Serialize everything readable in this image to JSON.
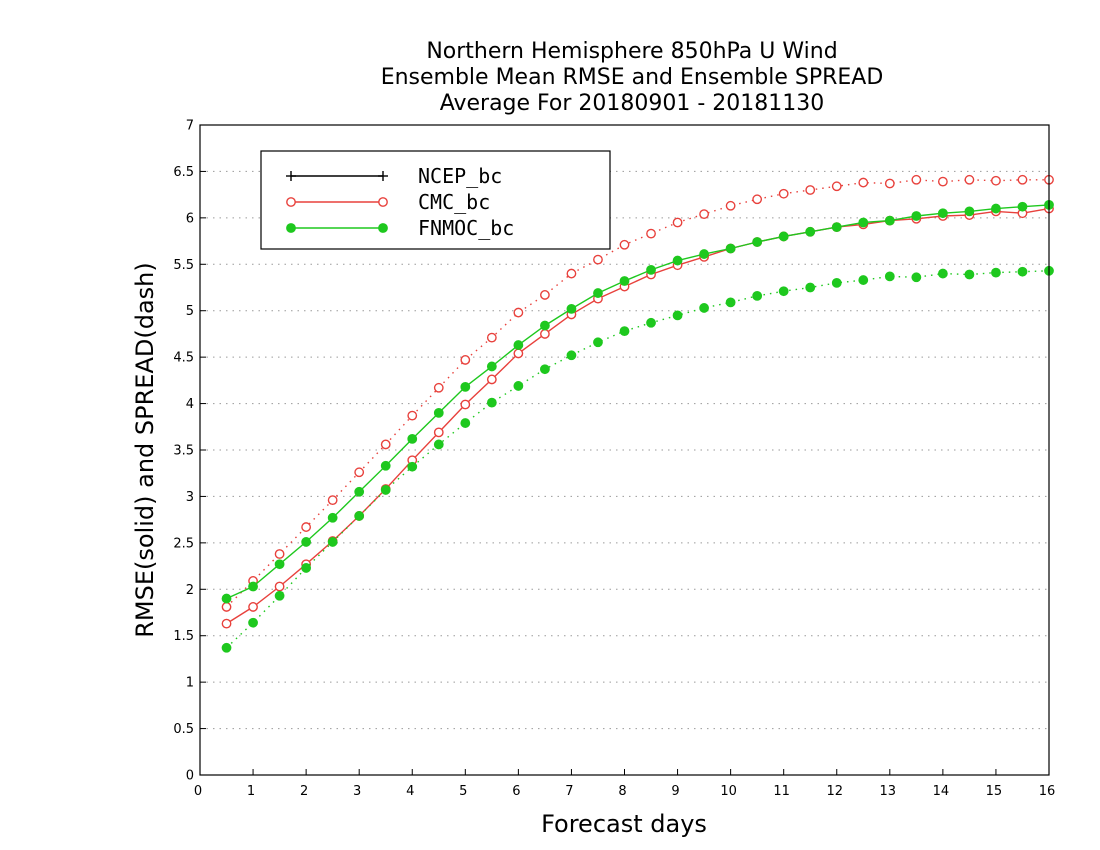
{
  "chart_data": {
    "type": "line",
    "title": [
      "Northern Hemisphere 850hPa U Wind",
      "Ensemble Mean RMSE and Ensemble SPREAD",
      "Average For 20180901 - 20181130"
    ],
    "xlabel": "Forecast days",
    "ylabel": "RMSE(solid) and SPREAD(dash)",
    "xlim": [
      0,
      16
    ],
    "ylim": [
      0,
      7
    ],
    "xticks": [
      "0",
      "1",
      "2",
      "3",
      "4",
      "5",
      "6",
      "7",
      "8",
      "9",
      "10",
      "11",
      "12",
      "13",
      "14",
      "15",
      "16"
    ],
    "yticks": [
      "0",
      "0.5",
      "1",
      "1.5",
      "2",
      "2.5",
      "3",
      "3.5",
      "4",
      "4.5",
      "5",
      "5.5",
      "6",
      "6.5",
      "7"
    ],
    "grid": "horizontal dotted",
    "legend_position": "top-left",
    "x": [
      0.5,
      1,
      1.5,
      2,
      2.5,
      3,
      3.5,
      4,
      4.5,
      5,
      5.5,
      6,
      6.5,
      7,
      7.5,
      8,
      8.5,
      9,
      9.5,
      10,
      10.5,
      11,
      11.5,
      12,
      12.5,
      13,
      13.5,
      14,
      14.5,
      15,
      15.5,
      16
    ],
    "series": [
      {
        "name": "NCEP_bc",
        "color": "#000000",
        "marker": "plus",
        "rmse": [],
        "spread": []
      },
      {
        "name": "CMC_bc",
        "color": "#e8413c",
        "marker": "open-circle",
        "rmse": [
          1.63,
          1.81,
          2.03,
          2.27,
          2.52,
          2.79,
          3.08,
          3.39,
          3.69,
          3.99,
          4.26,
          4.54,
          4.75,
          4.96,
          5.13,
          5.26,
          5.39,
          5.49,
          5.58,
          5.67,
          5.74,
          5.8,
          5.85,
          5.9,
          5.93,
          5.97,
          5.99,
          6.02,
          6.03,
          6.07,
          6.05,
          6.1
        ],
        "spread": [
          1.81,
          2.09,
          2.38,
          2.67,
          2.96,
          3.26,
          3.56,
          3.87,
          4.17,
          4.47,
          4.71,
          4.98,
          5.17,
          5.4,
          5.55,
          5.71,
          5.83,
          5.95,
          6.04,
          6.13,
          6.2,
          6.26,
          6.3,
          6.34,
          6.38,
          6.37,
          6.41,
          6.39,
          6.41,
          6.4,
          6.41,
          6.41
        ]
      },
      {
        "name": "FNMOC_bc",
        "color": "#1ec81e",
        "marker": "filled-circle",
        "rmse": [
          1.9,
          2.03,
          2.27,
          2.51,
          2.77,
          3.05,
          3.33,
          3.62,
          3.9,
          4.18,
          4.4,
          4.63,
          4.84,
          5.02,
          5.19,
          5.32,
          5.44,
          5.54,
          5.61,
          5.67,
          5.74,
          5.8,
          5.85,
          5.9,
          5.95,
          5.97,
          6.02,
          6.05,
          6.07,
          6.1,
          6.12,
          6.14
        ],
        "spread": [
          1.37,
          1.64,
          1.93,
          2.23,
          2.51,
          2.79,
          3.07,
          3.32,
          3.56,
          3.79,
          4.01,
          4.19,
          4.37,
          4.52,
          4.66,
          4.78,
          4.87,
          4.95,
          5.03,
          5.09,
          5.16,
          5.21,
          5.25,
          5.3,
          5.33,
          5.37,
          5.36,
          5.4,
          5.39,
          5.41,
          5.42,
          5.43
        ]
      }
    ]
  }
}
